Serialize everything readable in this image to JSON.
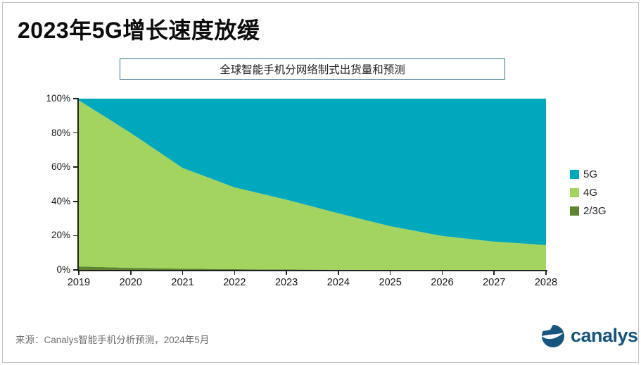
{
  "page": {
    "title": "2023年5G增长速度放缓",
    "subtitle": "全球智能手机分网络制式出货量和预测",
    "source": "来源：Canalys智能手机分析预测，2024年5月",
    "logo_text": "canalys"
  },
  "colors": {
    "brand_blue": "#16567e",
    "subtitle_border": "#34758f",
    "axis": "#1f1f1f"
  },
  "chart_data": {
    "type": "area",
    "stacked": true,
    "percent_of_total": true,
    "title": "全球智能手机分网络制式出货量和预测",
    "x": [
      2019,
      2020,
      2021,
      2022,
      2023,
      2024,
      2025,
      2026,
      2027,
      2028
    ],
    "series": [
      {
        "name": "2/3G",
        "color": "#5e8530",
        "values": [
          2,
          1.2,
          0.7,
          0.4,
          0.2,
          0.1,
          0,
          0,
          0,
          0
        ]
      },
      {
        "name": "4G",
        "color": "#a2d45f",
        "values": [
          97,
          78.8,
          58.8,
          47.8,
          40.8,
          32.9,
          25.5,
          19.8,
          16.5,
          14.5
        ]
      },
      {
        "name": "5G",
        "color": "#00a8bd",
        "values": [
          1,
          20,
          40.5,
          51.8,
          59,
          67,
          74.5,
          80.2,
          83.5,
          85.5
        ]
      }
    ],
    "legend_order": [
      "5G",
      "4G",
      "2/3G"
    ],
    "legend_position": "right",
    "y_ticks": [
      "0%",
      "20%",
      "40%",
      "60%",
      "80%",
      "100%"
    ],
    "ylim": [
      0,
      100
    ],
    "grid": false
  }
}
